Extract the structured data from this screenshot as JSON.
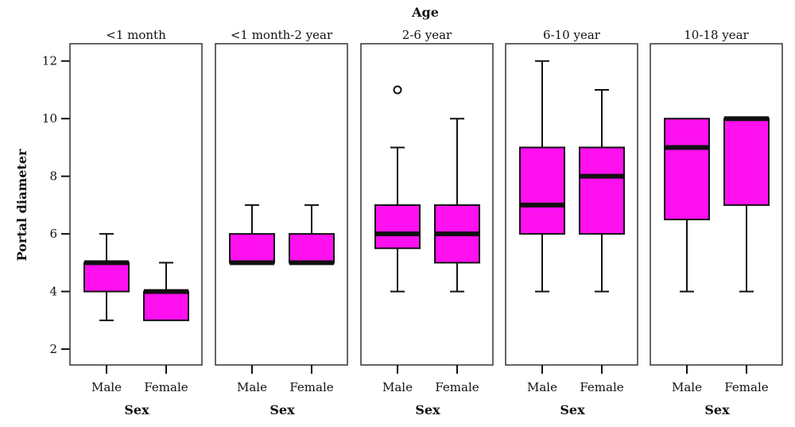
{
  "chart_data": {
    "type": "boxplot",
    "title": "Age",
    "ylabel": "Portal diameter",
    "xlabel": "Sex",
    "ylim": [
      1.45,
      12.6
    ],
    "yticks": [
      2,
      4,
      6,
      8,
      10,
      12
    ],
    "categories": [
      "Male",
      "Female"
    ],
    "box_color": "#ff10ef",
    "line_color": "#111111",
    "panels": [
      {
        "label": "<1 month",
        "boxes": [
          {
            "category": "Male",
            "min": 3,
            "q1": 4,
            "median": 5,
            "q3": 5,
            "max": 6,
            "outliers": []
          },
          {
            "category": "Female",
            "min": 3,
            "q1": 3,
            "median": 4,
            "q3": 4,
            "max": 5,
            "outliers": []
          }
        ]
      },
      {
        "label": "<1 month-2 year",
        "boxes": [
          {
            "category": "Male",
            "min": 5,
            "q1": 5,
            "median": 5,
            "q3": 6,
            "max": 7,
            "outliers": []
          },
          {
            "category": "Female",
            "min": 5,
            "q1": 5,
            "median": 5,
            "q3": 6,
            "max": 7,
            "outliers": []
          }
        ]
      },
      {
        "label": "2-6 year",
        "boxes": [
          {
            "category": "Male",
            "min": 4,
            "q1": 5.5,
            "median": 6,
            "q3": 7,
            "max": 9,
            "outliers": [
              11
            ]
          },
          {
            "category": "Female",
            "min": 4,
            "q1": 5,
            "median": 6,
            "q3": 7,
            "max": 10,
            "outliers": []
          }
        ]
      },
      {
        "label": "6-10 year",
        "boxes": [
          {
            "category": "Male",
            "min": 4,
            "q1": 6,
            "median": 7,
            "q3": 9,
            "max": 12,
            "outliers": []
          },
          {
            "category": "Female",
            "min": 4,
            "q1": 6,
            "median": 8,
            "q3": 9,
            "max": 11,
            "outliers": []
          }
        ]
      },
      {
        "label": "10-18 year",
        "boxes": [
          {
            "category": "Male",
            "min": 4,
            "q1": 6.5,
            "median": 9,
            "q3": 10,
            "max": 10,
            "outliers": []
          },
          {
            "category": "Female",
            "min": 4,
            "q1": 7,
            "median": 10,
            "q3": 10,
            "max": 10,
            "outliers": []
          }
        ]
      }
    ]
  }
}
